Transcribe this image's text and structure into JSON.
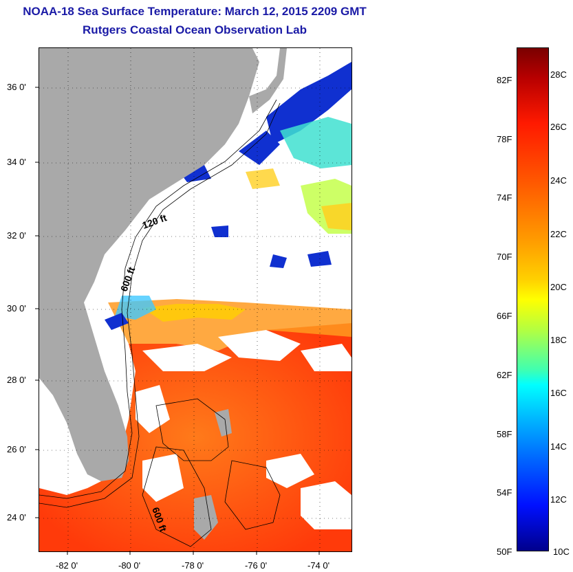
{
  "title": {
    "line1": "NOAA-18 Sea Surface Temperature:  March 12, 2015 2209 GMT",
    "line2": "Rutgers Coastal Ocean Observation Lab"
  },
  "map": {
    "lat_labels": [
      "36 0'",
      "34 0'",
      "32 0'",
      "30 0'",
      "28 0'",
      "26 0'",
      "24 0'"
    ],
    "lon_labels": [
      "-82 0'",
      "-80 0'",
      "-78 0'",
      "-76 0'",
      "-74 0'"
    ],
    "contour_labels": [
      "120 ft",
      "600 ft",
      "600 ft"
    ],
    "colors": {
      "land": "#a9a9a9",
      "cloud": "#ffffff",
      "warm_water": "#ff5a10",
      "cool_water": "#1030d0"
    }
  },
  "colorbar": {
    "fahrenheit_labels": [
      "82F",
      "78F",
      "74F",
      "70F",
      "66F",
      "62F",
      "58F",
      "54F",
      "50F"
    ],
    "celsius_labels": [
      "28C",
      "26C",
      "24C",
      "22C",
      "20C",
      "18C",
      "16C",
      "14C",
      "12C",
      "10C"
    ]
  }
}
